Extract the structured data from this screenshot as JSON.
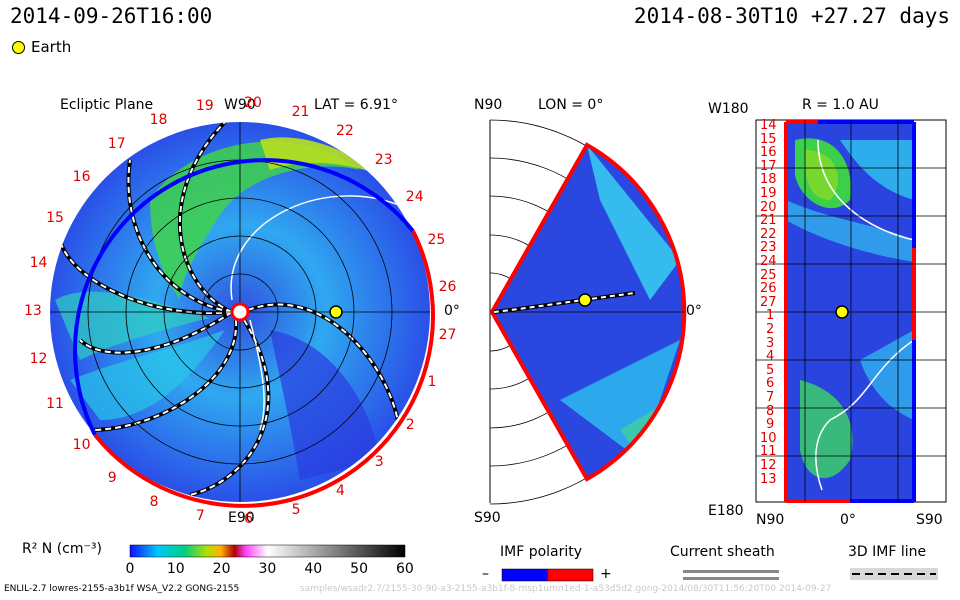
{
  "timestamp": "2014-09-26T16:00",
  "run_info": "2014-08-30T10 +27.27 days",
  "legend": {
    "earth_label": "Earth"
  },
  "panel_ecliptic": {
    "title": "Ecliptic Plane",
    "top_label": "W90",
    "bottom_label": "E90",
    "right_label": "0°",
    "lat_label": "LAT = 6.91°",
    "carrington_numbers": [
      "19",
      "20",
      "21",
      "22",
      "23",
      "24",
      "25",
      "26",
      "27",
      "1",
      "2",
      "3",
      "4",
      "5",
      "6",
      "7",
      "8",
      "9",
      "10",
      "11",
      "12",
      "13",
      "14",
      "15",
      "16",
      "17",
      "18"
    ]
  },
  "panel_meridional": {
    "top_label": "N90",
    "bottom_label": "S90",
    "right_label": "0°",
    "lon_label": "LON = 0°"
  },
  "panel_sphere": {
    "title": "R = 1.0 AU",
    "top_left_label": "W180",
    "bottom_left_label": "E180",
    "bottom_labels": [
      "N90",
      "0°",
      "S90"
    ],
    "y_ticks": [
      "14",
      "15",
      "16",
      "17",
      "18",
      "19",
      "20",
      "21",
      "22",
      "23",
      "24",
      "25",
      "26",
      "27",
      "1",
      "2",
      "3",
      "4",
      "5",
      "6",
      "7",
      "8",
      "9",
      "10",
      "11",
      "12",
      "13"
    ]
  },
  "colorbar": {
    "label": "R² N (cm⁻³)",
    "ticks": [
      "0",
      "10",
      "20",
      "30",
      "40",
      "50",
      "60"
    ]
  },
  "imf_polarity": {
    "label": "IMF polarity",
    "minus": "–",
    "plus": "+",
    "neg_color": "#0000ff",
    "pos_color": "#ff0000"
  },
  "current_sheath": {
    "label": "Current sheath"
  },
  "imf_line": {
    "label": "3D IMF line"
  },
  "footer": "ENLIL-2.7 lowres-2155-a3b1f WSA_V2.2 GONG-2155",
  "footer_watermark": "samples/wsadr2.7/2155-30-90-a3-2155-a3b1f-8-msp1umn1ed-1-a53d5d2.gong-2014/08/30T11:56:20T00 2014-09-27"
}
